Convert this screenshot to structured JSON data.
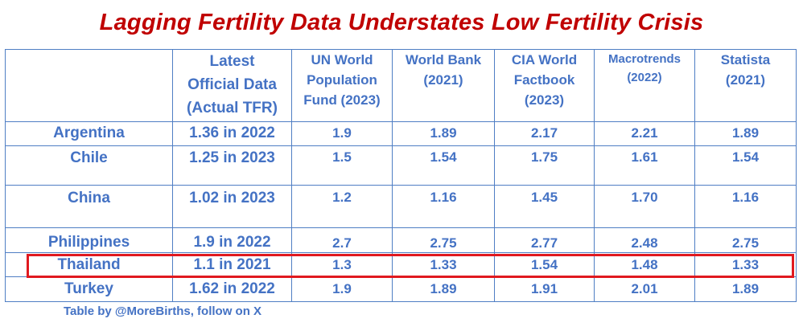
{
  "title": "Lagging Fertility Data Understates Low Fertility Crisis",
  "footer": "Table by @MoreBirths, follow on X",
  "highlight_color": "#e0191f",
  "colors": {
    "title": "#c00000",
    "country": "#c00000",
    "values": "#4472c4",
    "border": "#4f7ec4"
  },
  "chart_data": {
    "type": "table",
    "title": "Lagging Fertility Data Understates Low Fertility Crisis",
    "columns": [
      "",
      "Latest Official Data (Actual TFR)",
      "UN World Population Fund (2023)",
      "World Bank (2021)",
      "CIA World Factbook (2023)",
      "Macrotrends (2022)",
      "Statista (2021)"
    ],
    "column_lines": [
      [
        ""
      ],
      [
        "Latest",
        "Official Data",
        "(Actual TFR)"
      ],
      [
        "UN World",
        "Population",
        "Fund (2023)"
      ],
      [
        "World Bank",
        "(2021)"
      ],
      [
        "CIA World",
        "Factbook",
        "(2023)"
      ],
      [
        "Macrotrends",
        "(2022)"
      ],
      [
        "Statista",
        "(2021)"
      ]
    ],
    "rows": [
      {
        "country": "Argentina",
        "official": "1.36 in 2022",
        "un": "1.9",
        "world_bank": "1.89",
        "cia": "2.17",
        "macrotrends": "2.21",
        "statista": "1.89"
      },
      {
        "country": "Chile",
        "official": "1.25 in 2023",
        "un": "1.5",
        "world_bank": "1.54",
        "cia": "1.75",
        "macrotrends": "1.61",
        "statista": "1.54"
      },
      {
        "country": "China",
        "official": "1.02 in 2023",
        "un": "1.2",
        "world_bank": "1.16",
        "cia": "1.45",
        "macrotrends": "1.70",
        "statista": "1.16"
      },
      {
        "country": "Philippines",
        "official": "1.9 in 2022",
        "un": "2.7",
        "world_bank": "2.75",
        "cia": "2.77",
        "macrotrends": "2.48",
        "statista": "2.75"
      },
      {
        "country": "Thailand",
        "official": "1.1 in 2021",
        "un": "1.3",
        "world_bank": "1.33",
        "cia": "1.54",
        "macrotrends": "1.48",
        "statista": "1.33",
        "highlighted": true
      },
      {
        "country": "Turkey",
        "official": "1.62 in 2022",
        "un": "1.9",
        "world_bank": "1.89",
        "cia": "1.91",
        "macrotrends": "2.01",
        "statista": "1.89"
      }
    ]
  }
}
